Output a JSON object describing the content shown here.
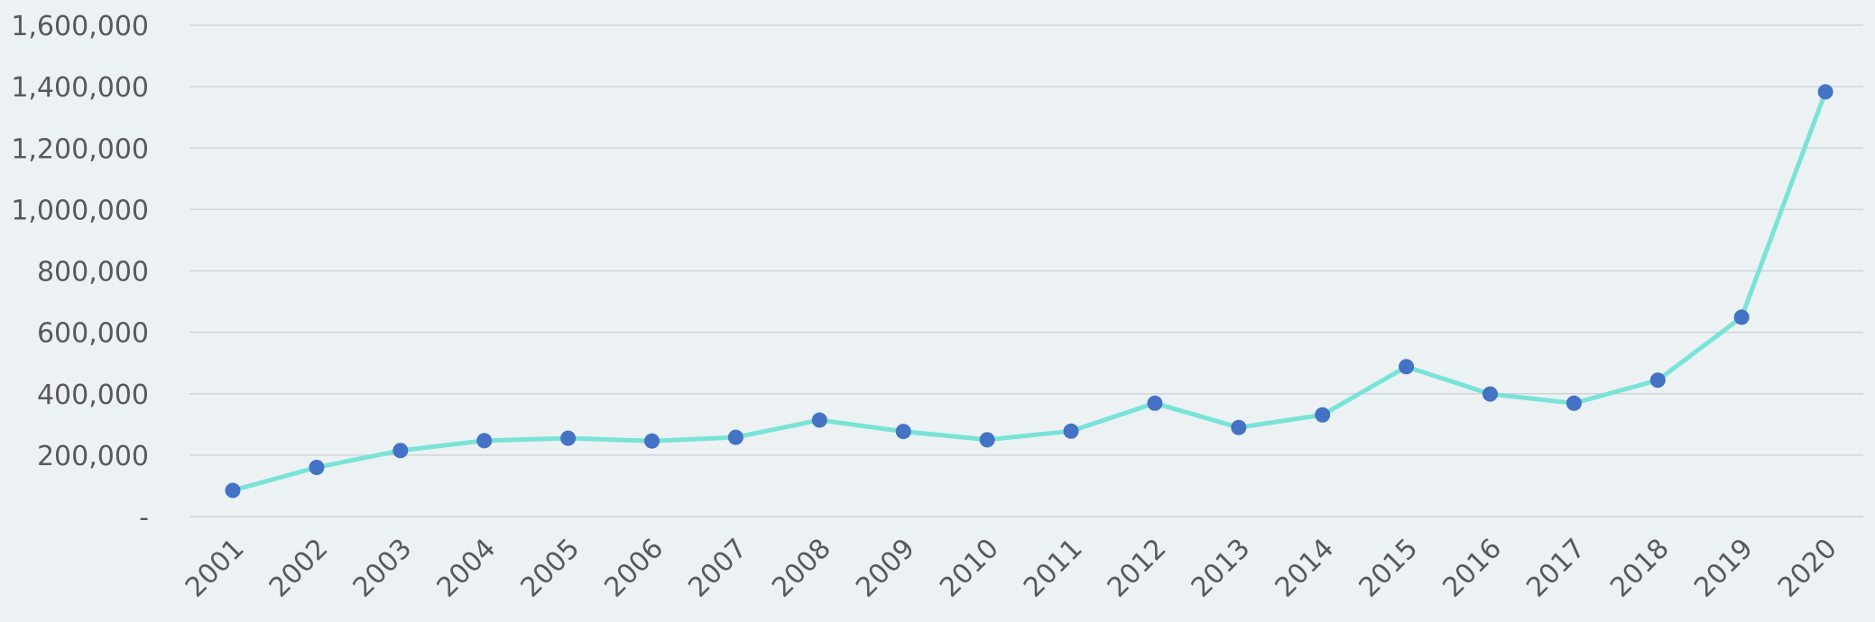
{
  "chart_data": {
    "type": "line",
    "title": "",
    "xlabel": "",
    "ylabel": "",
    "categories": [
      "2001",
      "2002",
      "2003",
      "2004",
      "2005",
      "2006",
      "2007",
      "2008",
      "2009",
      "2010",
      "2011",
      "2012",
      "2013",
      "2014",
      "2015",
      "2016",
      "2017",
      "2018",
      "2019",
      "2020"
    ],
    "series": [
      {
        "values": [
          85000,
          160000,
          215000,
          247000,
          255000,
          246000,
          258000,
          314000,
          277000,
          250000,
          278000,
          369000,
          290000,
          331000,
          488000,
          399000,
          369000,
          444000,
          649000,
          1383000
        ]
      }
    ],
    "ylim": [
      0,
      1600000
    ],
    "yticks": [
      0,
      200000,
      400000,
      600000,
      800000,
      1000000,
      1200000,
      1400000,
      1600000
    ],
    "ytick_labels": [
      "-",
      "200,000",
      "400,000",
      "600,000",
      "800,000",
      "1,000,000",
      "1,200,000",
      "1,400,000",
      "1,600,000"
    ],
    "grid": true,
    "legend": "none",
    "colors": {
      "line": "#79e3d7",
      "marker": "#4472c4",
      "grid": "#d0d5d9",
      "text": "#595959",
      "background": "#ecf1f3"
    }
  }
}
